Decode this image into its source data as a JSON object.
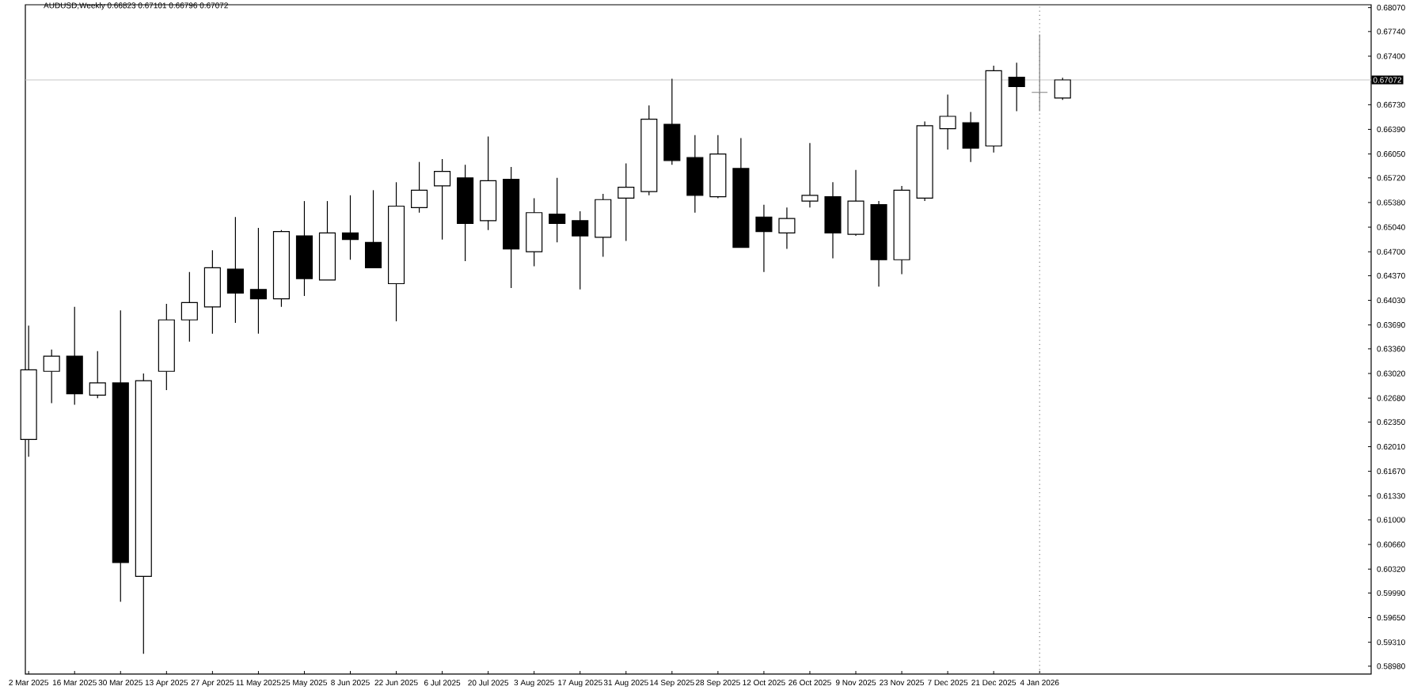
{
  "chart_data": {
    "type": "candlestick",
    "title": "AUDUSD,Weekly 0.66823 0.67101 0.66796 0.67072",
    "x": [
      "2025-03-02",
      "2025-03-09",
      "2025-03-16",
      "2025-03-23",
      "2025-03-30",
      "2025-04-06",
      "2025-04-13",
      "2025-04-20",
      "2025-04-27",
      "2025-05-04",
      "2025-05-11",
      "2025-05-18",
      "2025-05-25",
      "2025-06-01",
      "2025-06-08",
      "2025-06-15",
      "2025-06-22",
      "2025-06-29",
      "2025-07-06",
      "2025-07-13",
      "2025-07-20",
      "2025-07-27",
      "2025-08-03",
      "2025-08-10",
      "2025-08-17",
      "2025-08-24",
      "2025-08-31",
      "2025-09-07",
      "2025-09-14",
      "2025-09-21",
      "2025-09-28",
      "2025-10-05",
      "2025-10-12",
      "2025-10-19",
      "2025-10-26",
      "2025-11-02",
      "2025-11-09",
      "2025-11-16",
      "2025-11-23",
      "2025-11-30",
      "2025-12-07",
      "2025-12-14",
      "2025-12-21",
      "2025-12-28",
      "2026-01-04",
      "2026-01-11"
    ],
    "ohlc": [
      [
        0.6211,
        0.6368,
        0.6187,
        0.6307
      ],
      [
        0.6305,
        0.6335,
        0.6261,
        0.6326
      ],
      [
        0.6326,
        0.6394,
        0.6259,
        0.6274
      ],
      [
        0.6272,
        0.6333,
        0.6268,
        0.6289
      ],
      [
        0.6289,
        0.6389,
        0.5987,
        0.6041
      ],
      [
        0.6022,
        0.6302,
        0.5915,
        0.6292
      ],
      [
        0.6305,
        0.6398,
        0.6279,
        0.6376
      ],
      [
        0.6376,
        0.6442,
        0.6346,
        0.64
      ],
      [
        0.6394,
        0.6472,
        0.6357,
        0.6448
      ],
      [
        0.6446,
        0.6518,
        0.6372,
        0.6413
      ],
      [
        0.6418,
        0.6503,
        0.6357,
        0.6405
      ],
      [
        0.6405,
        0.65,
        0.6394,
        0.6498
      ],
      [
        0.6492,
        0.654,
        0.6409,
        0.6433
      ],
      [
        0.6431,
        0.654,
        0.6431,
        0.6496
      ],
      [
        0.6496,
        0.6548,
        0.6459,
        0.6487
      ],
      [
        0.6483,
        0.6555,
        0.6448,
        0.6448
      ],
      [
        0.6426,
        0.6566,
        0.6374,
        0.6533
      ],
      [
        0.6531,
        0.6594,
        0.6524,
        0.6555
      ],
      [
        0.6561,
        0.6598,
        0.6487,
        0.6581
      ],
      [
        0.6572,
        0.659,
        0.6457,
        0.6509
      ],
      [
        0.6513,
        0.6629,
        0.65,
        0.6568
      ],
      [
        0.657,
        0.6587,
        0.642,
        0.6474
      ],
      [
        0.647,
        0.6544,
        0.645,
        0.6524
      ],
      [
        0.6522,
        0.6572,
        0.6483,
        0.6509
      ],
      [
        0.6513,
        0.6526,
        0.6418,
        0.6492
      ],
      [
        0.649,
        0.655,
        0.6463,
        0.6542
      ],
      [
        0.6544,
        0.6592,
        0.6485,
        0.6559
      ],
      [
        0.6553,
        0.6672,
        0.6548,
        0.6653
      ],
      [
        0.6646,
        0.6709,
        0.659,
        0.6596
      ],
      [
        0.66,
        0.6631,
        0.6524,
        0.6548
      ],
      [
        0.6546,
        0.6631,
        0.6544,
        0.6605
      ],
      [
        0.6585,
        0.6627,
        0.6476,
        0.6476
      ],
      [
        0.6518,
        0.6535,
        0.6442,
        0.6498
      ],
      [
        0.6496,
        0.6531,
        0.6474,
        0.6516
      ],
      [
        0.654,
        0.662,
        0.6531,
        0.6548
      ],
      [
        0.6546,
        0.6566,
        0.6461,
        0.6496
      ],
      [
        0.6494,
        0.6583,
        0.6492,
        0.654
      ],
      [
        0.6535,
        0.654,
        0.6422,
        0.6459
      ],
      [
        0.6459,
        0.6561,
        0.6439,
        0.6555
      ],
      [
        0.6544,
        0.665,
        0.654,
        0.6644
      ],
      [
        0.664,
        0.6687,
        0.6611,
        0.6657
      ],
      [
        0.6648,
        0.6663,
        0.6594,
        0.6613
      ],
      [
        0.6616,
        0.6727,
        0.6607,
        0.672
      ],
      [
        0.6711,
        0.6731,
        0.6664,
        0.6698
      ],
      [
        0.669,
        0.677,
        0.6664,
        0.669
      ],
      [
        0.66823,
        0.67101,
        0.66796,
        0.67072
      ]
    ],
    "colors": [
      "#ffffff",
      "#ffffff",
      "#000000",
      "#ffffff",
      "#000000",
      "#ffffff",
      "#ffffff",
      "#ffffff",
      "#ffffff",
      "#000000",
      "#000000",
      "#ffffff",
      "#000000",
      "#ffffff",
      "#000000",
      "#000000",
      "#ffffff",
      "#ffffff",
      "#ffffff",
      "#000000",
      "#ffffff",
      "#000000",
      "#ffffff",
      "#000000",
      "#000000",
      "#ffffff",
      "#ffffff",
      "#ffffff",
      "#000000",
      "#000000",
      "#ffffff",
      "#000000",
      "#000000",
      "#ffffff",
      "#ffffff",
      "#000000",
      "#ffffff",
      "#000000",
      "#ffffff",
      "#ffffff",
      "#ffffff",
      "#000000",
      "#ffffff",
      "#000000",
      "#808080",
      "#ffffff"
    ],
    "xlim": [
      "2025-03-01",
      "2026-04-15"
    ],
    "xticks": [
      {
        "value": "2025-03-02",
        "label": "2 Mar 2025"
      },
      {
        "value": "2025-03-16",
        "label": "16 Mar 2025"
      },
      {
        "value": "2025-03-30",
        "label": "30 Mar 2025"
      },
      {
        "value": "2025-04-13",
        "label": "13 Apr 2025"
      },
      {
        "value": "2025-04-27",
        "label": "27 Apr 2025"
      },
      {
        "value": "2025-05-11",
        "label": "11 May 2025"
      },
      {
        "value": "2025-05-25",
        "label": "25 May 2025"
      },
      {
        "value": "2025-06-08",
        "label": "8 Jun 2025"
      },
      {
        "value": "2025-06-22",
        "label": "22 Jun 2025"
      },
      {
        "value": "2025-07-06",
        "label": "6 Jul 2025"
      },
      {
        "value": "2025-07-20",
        "label": "20 Jul 2025"
      },
      {
        "value": "2025-08-03",
        "label": "3 Aug 2025"
      },
      {
        "value": "2025-08-17",
        "label": "17 Aug 2025"
      },
      {
        "value": "2025-08-31",
        "label": "31 Aug 2025"
      },
      {
        "value": "2025-09-14",
        "label": "14 Sep 2025"
      },
      {
        "value": "2025-09-28",
        "label": "28 Sep 2025"
      },
      {
        "value": "2025-10-12",
        "label": "12 Oct 2025"
      },
      {
        "value": "2025-10-26",
        "label": "26 Oct 2025"
      },
      {
        "value": "2025-11-09",
        "label": "9 Nov 2025"
      },
      {
        "value": "2025-11-23",
        "label": "23 Nov 2025"
      },
      {
        "value": "2025-12-07",
        "label": "7 Dec 2025"
      },
      {
        "value": "2025-12-21",
        "label": "21 Dec 2025"
      },
      {
        "value": "2026-01-04",
        "label": "4 Jan 2026"
      }
    ],
    "ylim": [
      0.5887,
      0.6811
    ],
    "yticks": [
      {
        "value": 0.6807,
        "label": "0.68070"
      },
      {
        "value": 0.6774,
        "label": "0.67740"
      },
      {
        "value": 0.674,
        "label": "0.67400"
      },
      {
        "value": 0.6673,
        "label": "0.66730"
      },
      {
        "value": 0.6639,
        "label": "0.66390"
      },
      {
        "value": 0.6605,
        "label": "0.66050"
      },
      {
        "value": 0.6572,
        "label": "0.65720"
      },
      {
        "value": 0.6538,
        "label": "0.65380"
      },
      {
        "value": 0.6504,
        "label": "0.65040"
      },
      {
        "value": 0.647,
        "label": "0.64700"
      },
      {
        "value": 0.6437,
        "label": "0.64370"
      },
      {
        "value": 0.6403,
        "label": "0.64030"
      },
      {
        "value": 0.6369,
        "label": "0.63690"
      },
      {
        "value": 0.6336,
        "label": "0.63360"
      },
      {
        "value": 0.6302,
        "label": "0.63020"
      },
      {
        "value": 0.6268,
        "label": "0.62680"
      },
      {
        "value": 0.6235,
        "label": "0.62350"
      },
      {
        "value": 0.6201,
        "label": "0.62010"
      },
      {
        "value": 0.6167,
        "label": "0.61670"
      },
      {
        "value": 0.6133,
        "label": "0.61330"
      },
      {
        "value": 0.61,
        "label": "0.61000"
      },
      {
        "value": 0.6066,
        "label": "0.60660"
      },
      {
        "value": 0.6032,
        "label": "0.60320"
      },
      {
        "value": 0.5999,
        "label": "0.59990"
      },
      {
        "value": 0.5965,
        "label": "0.59650"
      },
      {
        "value": 0.5931,
        "label": "0.59310"
      },
      {
        "value": 0.5898,
        "label": "0.58980"
      }
    ],
    "ref_lines": [
      {
        "axis": "y",
        "value": 0.67072,
        "label": "0.67072",
        "color": "#c8c8c8",
        "line_style": "solid"
      },
      {
        "axis": "x",
        "value": "2026-01-04",
        "color": "#808080",
        "line_style": "dotted"
      }
    ]
  }
}
